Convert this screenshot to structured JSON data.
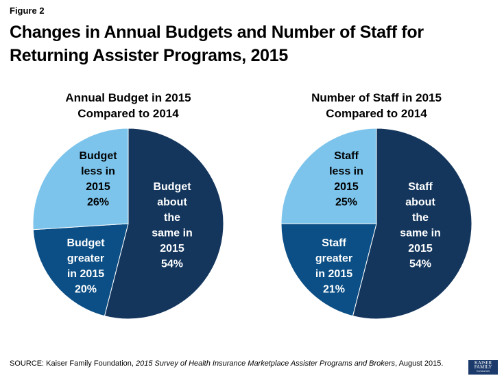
{
  "figure_label": "Figure 2",
  "title": "Changes in Annual Budgets and Number of Staff for Returning Assister Programs, 2015",
  "source": {
    "prefix": "SOURCE: Kaiser Family Foundation, ",
    "italic": "2015 Survey of Health Insurance Marketplace Assister Programs and Brokers",
    "suffix": ", August 2015."
  },
  "logo": {
    "line1": "KAISER",
    "line2": "FAMILY",
    "line3": "FOUNDATION"
  },
  "colors": {
    "same": "#14365d",
    "greater": "#0b4f86",
    "less": "#7cc4ec"
  },
  "chart_data": [
    {
      "type": "pie",
      "title_line1": "Annual Budget in 2015",
      "title_line2": "Compared to 2014",
      "slices": [
        {
          "name": "Budget about the same in 2015",
          "value": 54,
          "label_lines": [
            "Budget",
            "about",
            "the",
            "same in",
            "2015",
            "54%"
          ],
          "color_key": "same"
        },
        {
          "name": "Budget greater in 2015",
          "value": 20,
          "label_lines": [
            "Budget",
            "greater",
            "in 2015",
            "20%"
          ],
          "color_key": "greater"
        },
        {
          "name": "Budget less in 2015",
          "value": 26,
          "label_lines": [
            "Budget",
            "less in",
            "2015",
            "26%"
          ],
          "color_key": "less"
        }
      ]
    },
    {
      "type": "pie",
      "title_line1": "Number of Staff in 2015",
      "title_line2": "Compared to 2014",
      "slices": [
        {
          "name": "Staff about the same in 2015",
          "value": 54,
          "label_lines": [
            "Staff",
            "about",
            "the",
            "same in",
            "2015",
            "54%"
          ],
          "color_key": "same"
        },
        {
          "name": "Staff greater in 2015",
          "value": 21,
          "label_lines": [
            "Staff",
            "greater",
            "in 2015",
            "21%"
          ],
          "color_key": "greater"
        },
        {
          "name": "Staff less in 2015",
          "value": 25,
          "label_lines": [
            "Staff",
            "less in",
            "2015",
            "25%"
          ],
          "color_key": "less"
        }
      ]
    }
  ]
}
